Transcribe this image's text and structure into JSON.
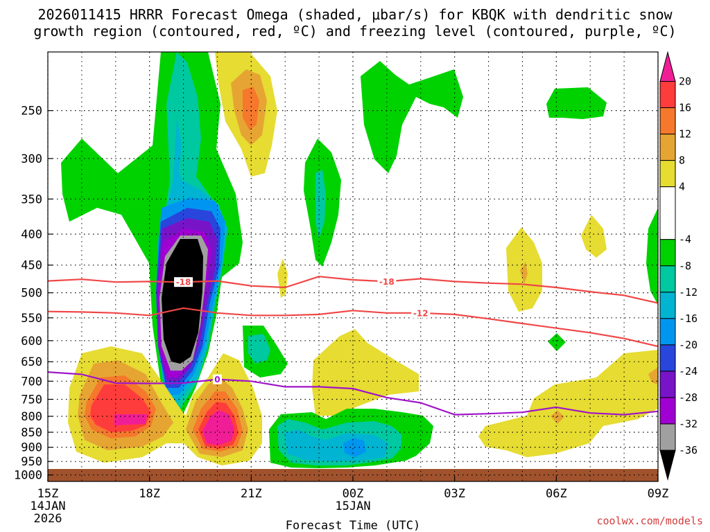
{
  "title_line1": "2026011415 HRRR Forecast Omega (shaded, μbar/s) for KBQK with dendritic snow",
  "title_line2": "growth region (contoured, red, ºC) and freezing level (contoured, purple, ºC)",
  "credit": "coolwx.com/models",
  "chart_data": {
    "type": "contour",
    "title": "2026011415 HRRR Forecast Omega (shaded, μbar/s) for KBQK with dendritic snow growth region (contoured, red, ºC) and freezing level (contoured, purple, ºC)",
    "xlabel": "Forecast Time (UTC)",
    "ylabel": "",
    "x_range_hours": [
      0,
      18
    ],
    "y_range_hpa": [
      1025,
      200
    ],
    "x_ticks": [
      {
        "hour": 0,
        "label": "15Z",
        "sub1": "14JAN",
        "sub2": "2026"
      },
      {
        "hour": 3,
        "label": "18Z",
        "sub1": "",
        "sub2": ""
      },
      {
        "hour": 6,
        "label": "21Z",
        "sub1": "",
        "sub2": ""
      },
      {
        "hour": 9,
        "label": "00Z",
        "sub1": "15JAN",
        "sub2": ""
      },
      {
        "hour": 12,
        "label": "03Z",
        "sub1": "",
        "sub2": ""
      },
      {
        "hour": 15,
        "label": "06Z",
        "sub1": "",
        "sub2": ""
      },
      {
        "hour": 18,
        "label": "09Z",
        "sub1": "",
        "sub2": ""
      }
    ],
    "y_ticks": [
      250,
      300,
      350,
      400,
      450,
      500,
      550,
      600,
      650,
      700,
      750,
      800,
      850,
      900,
      950,
      1000
    ],
    "colorbar": {
      "labels": [
        "20",
        "16",
        "12",
        "8",
        "4",
        "-4",
        "-8",
        "-12",
        "-16",
        "-20",
        "-24",
        "-28",
        "-32",
        "-36"
      ],
      "bands": [
        {
          "from": 16,
          "to": 20,
          "color": "#ff3c3c"
        },
        {
          "from": 12,
          "to": 16,
          "color": "#f5782d"
        },
        {
          "from": 8,
          "to": 12,
          "color": "#e6a532"
        },
        {
          "from": 4,
          "to": 8,
          "color": "#e6dc32"
        },
        {
          "from": -4,
          "to": 4,
          "color": "#ffffff"
        },
        {
          "from": -8,
          "to": -4,
          "color": "#00d200"
        },
        {
          "from": -12,
          "to": -8,
          "color": "#00c8a0"
        },
        {
          "from": -16,
          "to": -12,
          "color": "#00b4d2"
        },
        {
          "from": -20,
          "to": -16,
          "color": "#0096f0"
        },
        {
          "from": -24,
          "to": -20,
          "color": "#2846dc"
        },
        {
          "from": -28,
          "to": -24,
          "color": "#7814c8"
        },
        {
          "from": -32,
          "to": -28,
          "color": "#a000d2"
        },
        {
          "from": -36,
          "to": -32,
          "color": "#a0a0a0"
        }
      ],
      "top_triangle": "#f01e96",
      "bottom_triangle": "#000000"
    },
    "dgz_contours": [
      {
        "level": -18,
        "label": "-18",
        "color": "#f04646",
        "points": [
          [
            0,
            478
          ],
          [
            1,
            475
          ],
          [
            2,
            480
          ],
          [
            3,
            479
          ],
          [
            4,
            480
          ],
          [
            5,
            478
          ],
          [
            6,
            487
          ],
          [
            7,
            490
          ],
          [
            8,
            470
          ],
          [
            9,
            476
          ],
          [
            10,
            479
          ],
          [
            11,
            474
          ],
          [
            12,
            479
          ],
          [
            13,
            482
          ],
          [
            14,
            484
          ],
          [
            15,
            490
          ],
          [
            16,
            498
          ],
          [
            17,
            505
          ],
          [
            18,
            520
          ]
        ],
        "label_hours": [
          4,
          10
        ]
      },
      {
        "level": -12,
        "label": "-12",
        "color": "#f04646",
        "points": [
          [
            0,
            537
          ],
          [
            1,
            538
          ],
          [
            2,
            540
          ],
          [
            3,
            545
          ],
          [
            4,
            530
          ],
          [
            5,
            540
          ],
          [
            6,
            545
          ],
          [
            7,
            545
          ],
          [
            8,
            543
          ],
          [
            9,
            535
          ],
          [
            10,
            540
          ],
          [
            11,
            540
          ],
          [
            12,
            543
          ],
          [
            13,
            552
          ],
          [
            14,
            562
          ],
          [
            15,
            572
          ],
          [
            16,
            582
          ],
          [
            17,
            595
          ],
          [
            18,
            613
          ]
        ],
        "label_hours": [
          11
        ]
      }
    ],
    "freezing_level": {
      "level": 0,
      "label": "0",
      "color": "#a014c8",
      "points": [
        [
          0,
          676
        ],
        [
          1,
          682
        ],
        [
          2,
          705
        ],
        [
          3,
          706
        ],
        [
          4,
          705
        ],
        [
          5,
          695
        ],
        [
          6,
          700
        ],
        [
          7,
          715
        ],
        [
          8,
          715
        ],
        [
          9,
          720
        ],
        [
          10,
          745
        ],
        [
          11,
          760
        ],
        [
          12,
          795
        ],
        [
          13,
          792
        ],
        [
          14,
          788
        ],
        [
          15,
          773
        ],
        [
          16,
          790
        ],
        [
          17,
          795
        ],
        [
          18,
          785
        ]
      ],
      "label_hours": [
        5
      ]
    },
    "omega_features": [
      {
        "name": "strong ascent core",
        "x_hours": [
          2.6,
          5.6
        ],
        "p_hpa": [
          290,
          710
        ],
        "min_value": -36
      },
      {
        "name": "descent maxima low levels",
        "x_hours": [
          0.8,
          4.5
        ],
        "p_hpa": [
          640,
          960
        ],
        "max_value": 20
      },
      {
        "name": "upper sinking 20-21Z",
        "x_hours": [
          4.8,
          6.8
        ],
        "p_hpa": [
          200,
          320
        ],
        "max_value": 12
      },
      {
        "name": "low level ascent 22-02Z",
        "x_hours": [
          6.6,
          11.6
        ],
        "p_hpa": [
          830,
          990
        ],
        "min_value": -16
      }
    ]
  }
}
